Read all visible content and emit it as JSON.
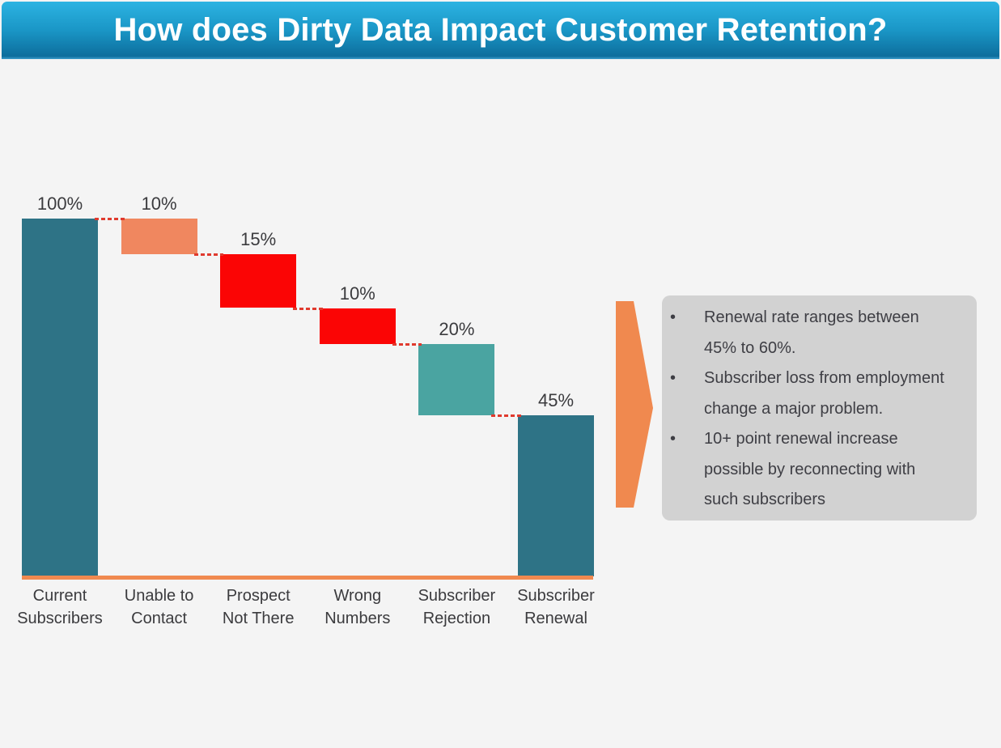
{
  "header": {
    "title": "How does Dirty Data Impact Customer Retention?"
  },
  "chart_data": {
    "type": "waterfall",
    "title": "How does Dirty Data Impact Customer Retention?",
    "categories": [
      "Current Subscribers",
      "Unable to Contact",
      "Prospect Not There",
      "Wrong Numbers",
      "Subscriber Rejection",
      "Subscriber Renewal"
    ],
    "category_lines": [
      [
        "Current",
        "Subscribers"
      ],
      [
        "Unable to",
        "Contact"
      ],
      [
        "Prospect",
        "Not There"
      ],
      [
        "Wrong",
        "Numbers"
      ],
      [
        "Subscriber",
        "Rejection"
      ],
      [
        "Subscriber",
        "Renewal"
      ]
    ],
    "values": [
      100,
      10,
      15,
      10,
      20,
      45
    ],
    "value_labels": [
      "100%",
      "10%",
      "15%",
      "10%",
      "20%",
      "45%"
    ],
    "roles": [
      "total",
      "decrease",
      "decrease",
      "decrease",
      "decrease",
      "remainder"
    ],
    "bar_colors": [
      "#2E7386",
      "#F0875F",
      "#FB0505",
      "#FB0505",
      "#4AA4A1",
      "#2E7386"
    ],
    "connector_color": "#E03A2E",
    "baseline_color": "#F0894F",
    "ylim": [
      0,
      100
    ],
    "grid": false,
    "legend": false
  },
  "callout": {
    "background": "#D2D2D2",
    "arrow_color": "#F0894F",
    "bullets": [
      "Renewal rate ranges between 45% to 60%.",
      "Subscriber loss from employment change a major problem.",
      "10+ point renewal increase possible by reconnecting with such subscribers"
    ]
  },
  "colors": {
    "page_background": "#F4F4F4",
    "header_gradient_top": "#2CB3E2",
    "header_gradient_bottom": "#0D6E9D",
    "title_text": "#FFFFFF",
    "label_text": "#3B3B3E"
  }
}
